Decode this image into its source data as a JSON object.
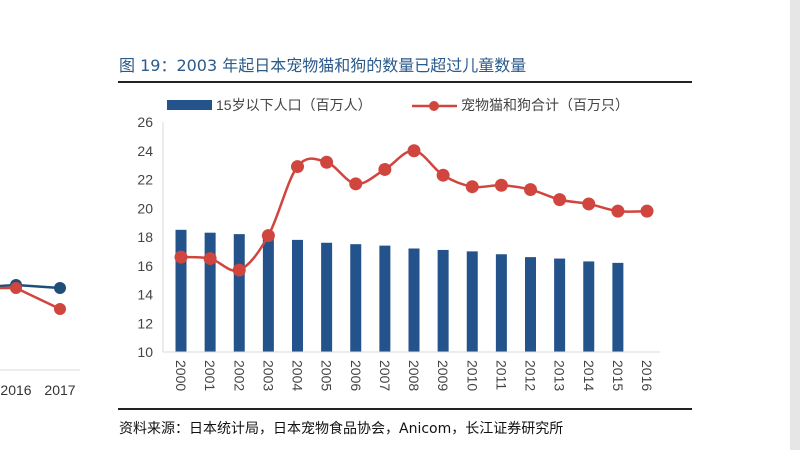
{
  "figure": {
    "title": "图 19：2003 年起日本宠物猫和狗的数量已超过儿童数量",
    "source": "资料来源：日本统计局，日本宠物食品协会，Anicom，长江证券研究所"
  },
  "left_partial_chart": {
    "x_labels": [
      "2016",
      "2017"
    ],
    "colors": {
      "blue": "#1f4e79",
      "red": "#d0463f"
    }
  },
  "chart_data": {
    "type": "bar+line",
    "categories": [
      "2000",
      "2001",
      "2002",
      "2003",
      "2004",
      "2005",
      "2006",
      "2007",
      "2008",
      "2009",
      "2010",
      "2011",
      "2012",
      "2013",
      "2014",
      "2015",
      "2016"
    ],
    "series": [
      {
        "name": "15岁以下人口（百万人）",
        "type": "bar",
        "color": "#23538a",
        "values": [
          18.5,
          18.3,
          18.2,
          18.0,
          17.8,
          17.6,
          17.5,
          17.4,
          17.2,
          17.1,
          17.0,
          16.8,
          16.6,
          16.5,
          16.3,
          16.2,
          null
        ]
      },
      {
        "name": "宠物猫和狗合计（百万只）",
        "type": "line",
        "color": "#d0463f",
        "values": [
          16.6,
          16.5,
          15.7,
          18.1,
          22.9,
          23.2,
          21.7,
          22.7,
          24.0,
          22.3,
          21.5,
          21.6,
          21.3,
          20.6,
          20.3,
          19.8,
          19.8
        ]
      }
    ],
    "ylim": [
      10,
      26
    ],
    "yticks": [
      10,
      12,
      14,
      16,
      18,
      20,
      22,
      24,
      26
    ],
    "legend": "top",
    "grid": false
  }
}
